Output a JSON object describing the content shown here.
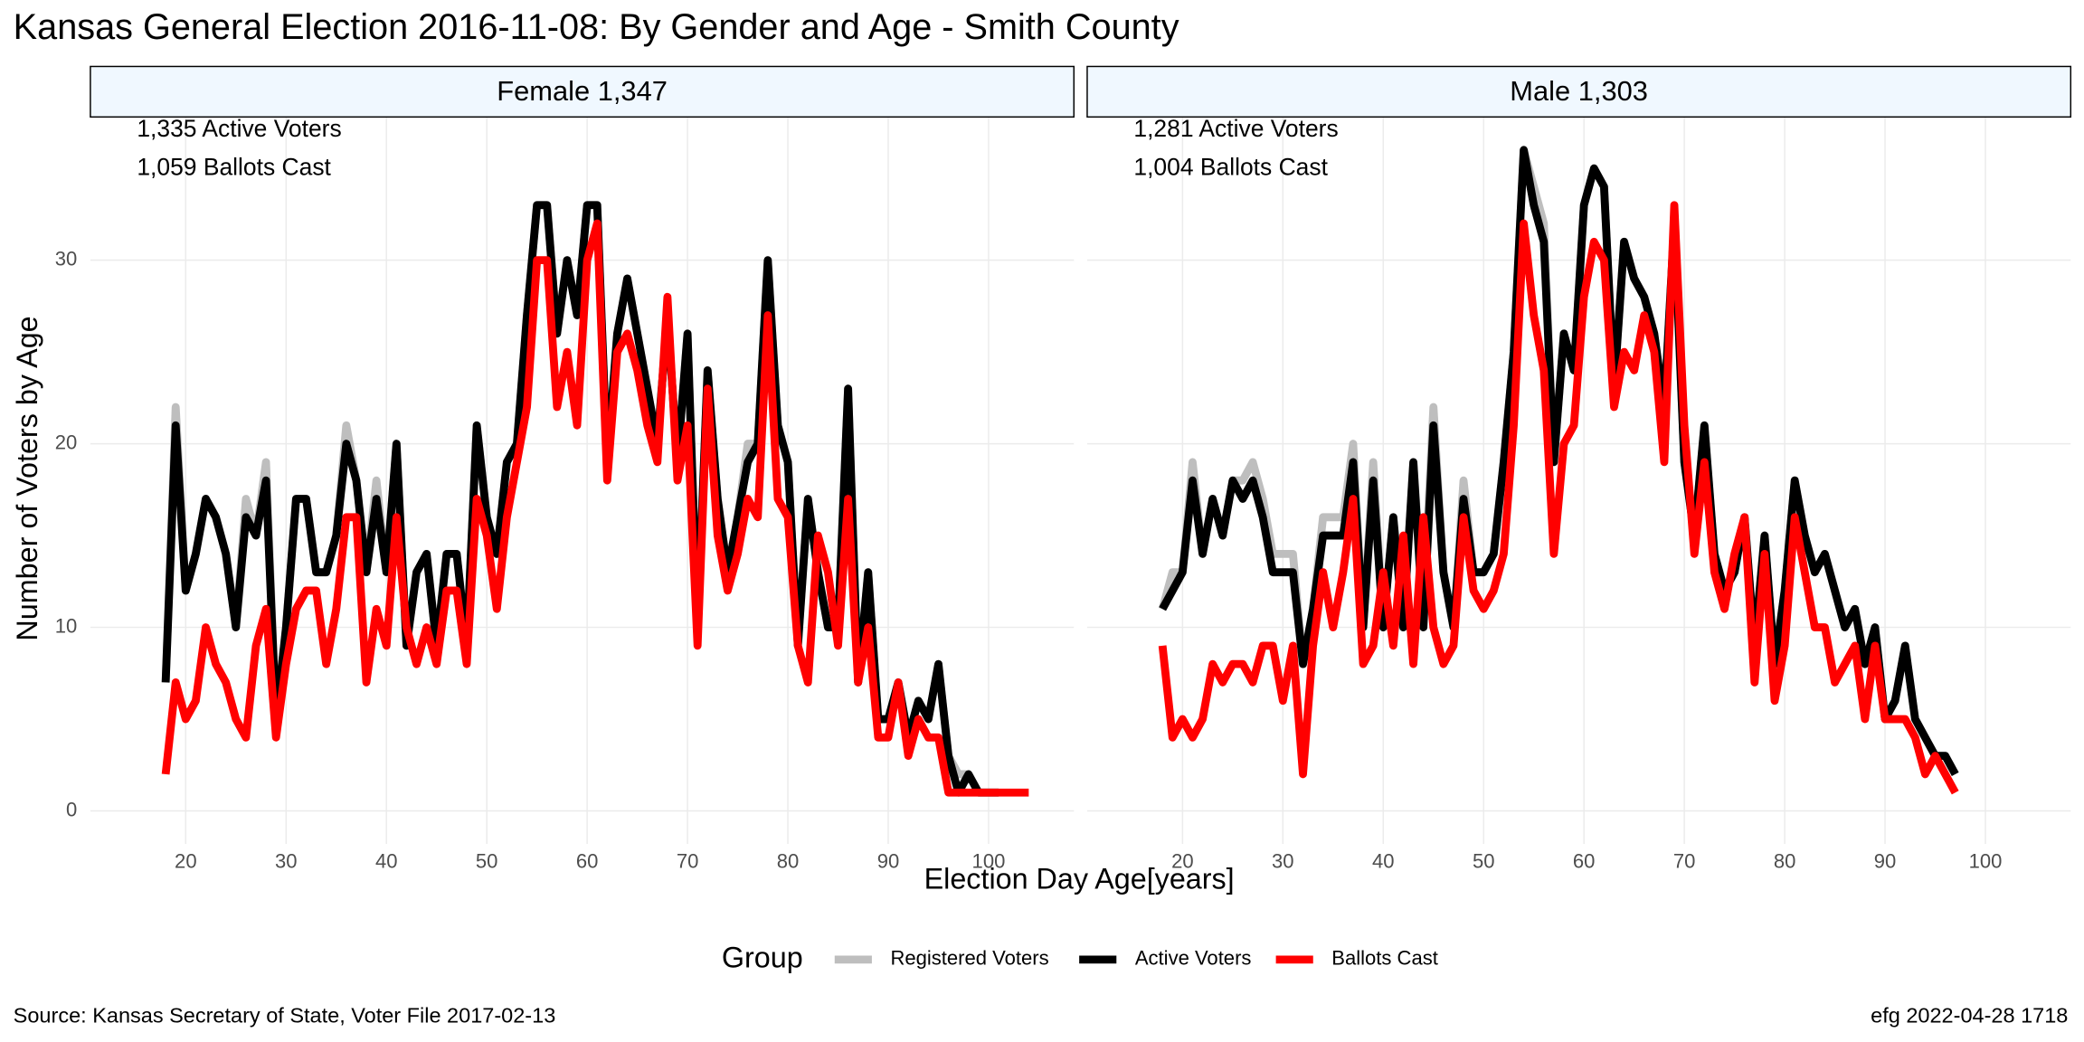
{
  "title": "Kansas General Election 2016-11-08:  By Gender and Age - Smith County",
  "xlabel": "Election Day Age[years]",
  "ylabel": "Number of Voters by Age",
  "legend_title": "Group",
  "source": "Source:  Kansas Secretary of State, Voter File  2017-02-13",
  "credit": "efg 2022-04-28 1718",
  "chart_data": [
    {
      "type": "line",
      "title": "Female 1,347",
      "annotations": [
        "1,335 Active Voters",
        "1,059 Ballots Cast"
      ],
      "xlim": [
        10.5,
        108.5
      ],
      "xticks": [
        20,
        30,
        40,
        50,
        60,
        70,
        80,
        90,
        100
      ],
      "ylim": [
        -1.8,
        37.8
      ],
      "yticks": [
        0,
        10,
        20,
        30
      ],
      "grid": true,
      "x": [
        18,
        19,
        20,
        21,
        22,
        23,
        24,
        25,
        26,
        27,
        28,
        29,
        30,
        31,
        32,
        33,
        34,
        35,
        36,
        37,
        38,
        39,
        40,
        41,
        42,
        43,
        44,
        45,
        46,
        47,
        48,
        49,
        50,
        51,
        52,
        53,
        54,
        55,
        56,
        57,
        58,
        59,
        60,
        61,
        62,
        63,
        64,
        65,
        66,
        67,
        68,
        69,
        70,
        71,
        72,
        73,
        74,
        75,
        76,
        77,
        78,
        79,
        80,
        81,
        82,
        83,
        84,
        85,
        86,
        87,
        88,
        89,
        90,
        91,
        92,
        93,
        94,
        95,
        96,
        97,
        98,
        99,
        100,
        101,
        102,
        103,
        104
      ],
      "series": [
        {
          "name": "Registered Voters",
          "color": "#bebebe",
          "values": [
            7,
            22,
            12,
            14,
            17,
            16,
            14,
            10,
            17,
            15,
            19,
            5,
            10,
            17,
            17,
            13,
            13,
            15,
            21,
            18,
            13,
            18,
            13,
            20,
            9,
            13,
            14,
            9,
            14,
            14,
            9,
            21,
            16,
            14,
            19,
            20,
            27,
            33,
            33,
            26,
            30,
            27,
            33,
            33,
            19,
            26,
            29,
            26,
            23,
            20,
            27,
            19,
            26,
            10,
            24,
            17,
            13,
            16,
            20,
            20,
            30,
            21,
            19,
            9,
            17,
            13,
            10,
            10,
            23,
            7,
            13,
            5,
            5,
            7,
            4,
            6,
            5,
            8,
            3,
            2,
            2,
            1,
            1,
            1,
            null,
            null,
            null
          ]
        },
        {
          "name": "Active Voters",
          "color": "#000000",
          "values": [
            7,
            21,
            12,
            14,
            17,
            16,
            14,
            10,
            16,
            15,
            18,
            5,
            10,
            17,
            17,
            13,
            13,
            15,
            20,
            18,
            13,
            17,
            13,
            20,
            9,
            13,
            14,
            9,
            14,
            14,
            9,
            21,
            16,
            14,
            19,
            20,
            27,
            33,
            33,
            26,
            30,
            27,
            33,
            33,
            19,
            26,
            29,
            26,
            23,
            20,
            27,
            19,
            26,
            10,
            24,
            17,
            13,
            16,
            19,
            20,
            30,
            21,
            19,
            9,
            17,
            13,
            10,
            10,
            23,
            7,
            13,
            5,
            5,
            7,
            4,
            6,
            5,
            8,
            3,
            1,
            2,
            1,
            1,
            1,
            null,
            null,
            null
          ]
        },
        {
          "name": "Ballots Cast",
          "color": "#ff0000",
          "values": [
            2,
            7,
            5,
            6,
            10,
            8,
            7,
            5,
            4,
            9,
            11,
            4,
            8,
            11,
            12,
            12,
            8,
            11,
            16,
            16,
            7,
            11,
            9,
            16,
            10,
            8,
            10,
            8,
            12,
            12,
            8,
            17,
            15,
            11,
            16,
            19,
            22,
            30,
            30,
            22,
            25,
            21,
            30,
            32,
            18,
            25,
            26,
            24,
            21,
            19,
            28,
            18,
            21,
            9,
            23,
            15,
            12,
            14,
            17,
            16,
            27,
            17,
            16,
            9,
            7,
            15,
            13,
            9,
            17,
            7,
            10,
            4,
            4,
            7,
            3,
            5,
            4,
            4,
            1,
            1,
            1,
            1,
            1,
            1,
            1,
            1,
            1
          ]
        }
      ]
    },
    {
      "type": "line",
      "title": "Male 1,303",
      "annotations": [
        "1,281 Active Voters",
        "1,004 Ballots Cast"
      ],
      "xlim": [
        10.5,
        108.5
      ],
      "xticks": [
        20,
        30,
        40,
        50,
        60,
        70,
        80,
        90,
        100
      ],
      "ylim": [
        -1.8,
        37.8
      ],
      "yticks": [
        0,
        10,
        20,
        30
      ],
      "grid": true,
      "x": [
        18,
        19,
        20,
        21,
        22,
        23,
        24,
        25,
        26,
        27,
        28,
        29,
        30,
        31,
        32,
        33,
        34,
        35,
        36,
        37,
        38,
        39,
        40,
        41,
        42,
        43,
        44,
        45,
        46,
        47,
        48,
        49,
        50,
        51,
        52,
        53,
        54,
        55,
        56,
        57,
        58,
        59,
        60,
        61,
        62,
        63,
        64,
        65,
        66,
        67,
        68,
        69,
        70,
        71,
        72,
        73,
        74,
        75,
        76,
        77,
        78,
        79,
        80,
        81,
        82,
        83,
        84,
        85,
        86,
        87,
        88,
        89,
        90,
        91,
        92,
        93,
        94,
        95,
        96,
        97
      ],
      "series": [
        {
          "name": "Registered Voters",
          "color": "#bebebe",
          "values": [
            11,
            13,
            13,
            19,
            14,
            17,
            15,
            18,
            18,
            19,
            17,
            14,
            14,
            14,
            8,
            11,
            16,
            16,
            16,
            20,
            10,
            19,
            10,
            16,
            10,
            19,
            11,
            22,
            13,
            10,
            18,
            13,
            13,
            14,
            19,
            25,
            36,
            34,
            32,
            19,
            26,
            24,
            33,
            35,
            34,
            23,
            31,
            29,
            28,
            26,
            22,
            32,
            19,
            15,
            21,
            14,
            12,
            13,
            16,
            9,
            15,
            8,
            12,
            18,
            15,
            13,
            14,
            12,
            10,
            11,
            8,
            10,
            5,
            6,
            9,
            5,
            4,
            3,
            3,
            2
          ]
        },
        {
          "name": "Active Voters",
          "color": "#000000",
          "values": [
            11,
            12,
            13,
            18,
            14,
            17,
            15,
            18,
            17,
            18,
            16,
            13,
            13,
            13,
            8,
            11,
            15,
            15,
            15,
            19,
            10,
            18,
            10,
            16,
            10,
            19,
            10,
            21,
            13,
            10,
            17,
            13,
            13,
            14,
            19,
            25,
            36,
            33,
            31,
            19,
            26,
            24,
            33,
            35,
            34,
            23,
            31,
            29,
            28,
            26,
            22,
            32,
            19,
            15,
            21,
            14,
            12,
            13,
            16,
            9,
            15,
            8,
            12,
            18,
            15,
            13,
            14,
            12,
            10,
            11,
            8,
            10,
            5,
            6,
            9,
            5,
            4,
            3,
            3,
            2
          ]
        },
        {
          "name": "Ballots Cast",
          "color": "#ff0000",
          "values": [
            9,
            4,
            5,
            4,
            5,
            8,
            7,
            8,
            8,
            7,
            9,
            9,
            6,
            9,
            2,
            9,
            13,
            10,
            13,
            17,
            8,
            9,
            13,
            9,
            15,
            8,
            16,
            10,
            8,
            9,
            16,
            12,
            11,
            12,
            14,
            21,
            32,
            27,
            24,
            14,
            20,
            21,
            28,
            31,
            30,
            22,
            25,
            24,
            27,
            25,
            19,
            33,
            21,
            14,
            19,
            13,
            11,
            14,
            16,
            7,
            14,
            6,
            9,
            16,
            13,
            10,
            10,
            7,
            8,
            9,
            5,
            9,
            5,
            5,
            5,
            4,
            2,
            3,
            2,
            1
          ]
        }
      ]
    }
  ]
}
